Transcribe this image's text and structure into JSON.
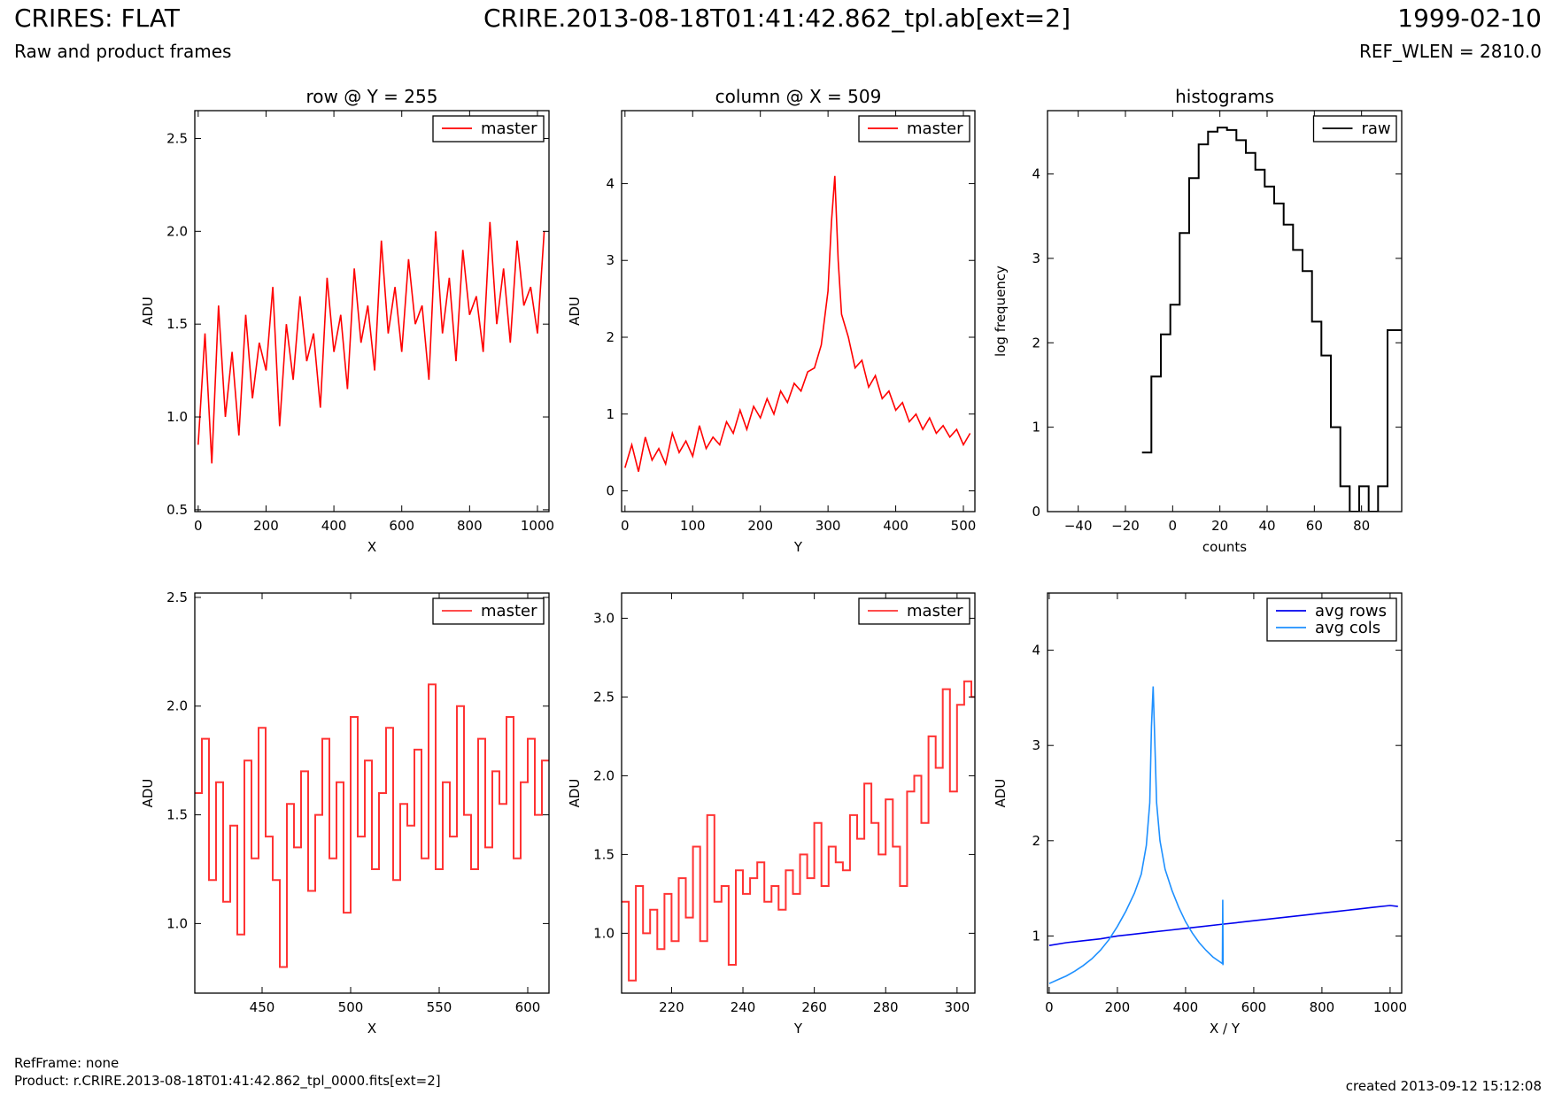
{
  "header": {
    "title_left": "CRIRES: FLAT",
    "subtitle_left": "Raw and product frames",
    "title_center": "CRIRE.2013-08-18T01:41:42.862_tpl.ab[ext=2]",
    "title_right": "1999-02-10",
    "subtitle_right": "REF_WLEN = 2810.0"
  },
  "footer": {
    "refframe": "RefFrame: none",
    "product": "Product: r.CRIRE.2013-08-18T01:41:42.862_tpl_0000.fits[ext=2]",
    "created": "created 2013-09-12 15:12:08"
  },
  "colors": {
    "master": "#ff0000",
    "master_zoom": "#ff3333",
    "raw": "#000000",
    "avg_rows": "#0000ee",
    "avg_cols": "#1e90ff"
  },
  "chart_data": [
    {
      "type": "line",
      "title": "row @ Y = 255",
      "xlabel": "X",
      "ylabel": "ADU",
      "xlim": [
        -10,
        1034
      ],
      "ylim": [
        0.49,
        2.65
      ],
      "xticks": [
        0,
        200,
        400,
        600,
        800,
        1000
      ],
      "yticks": [
        0.5,
        1.0,
        1.5,
        2.0,
        2.5
      ],
      "legend": "top-right",
      "grid": false,
      "series": [
        {
          "name": "master",
          "color": "#ff0000",
          "style": "line",
          "x": [
            0,
            20,
            40,
            60,
            80,
            100,
            120,
            140,
            160,
            180,
            200,
            220,
            240,
            260,
            280,
            300,
            320,
            340,
            360,
            380,
            400,
            420,
            440,
            460,
            480,
            500,
            520,
            540,
            560,
            580,
            600,
            620,
            640,
            660,
            680,
            700,
            720,
            740,
            760,
            780,
            800,
            820,
            840,
            860,
            880,
            900,
            920,
            940,
            960,
            980,
            1000,
            1020
          ],
          "y": [
            0.85,
            1.45,
            0.75,
            1.6,
            1.0,
            1.35,
            0.9,
            1.55,
            1.1,
            1.4,
            1.25,
            1.7,
            0.95,
            1.5,
            1.2,
            1.65,
            1.3,
            1.45,
            1.05,
            1.75,
            1.35,
            1.55,
            1.15,
            1.8,
            1.4,
            1.6,
            1.25,
            1.95,
            1.45,
            1.7,
            1.35,
            1.85,
            1.5,
            1.6,
            1.2,
            2.0,
            1.45,
            1.75,
            1.3,
            1.9,
            1.55,
            1.65,
            1.35,
            2.05,
            1.5,
            1.8,
            1.4,
            1.95,
            1.6,
            1.7,
            1.45,
            2.0
          ]
        }
      ]
    },
    {
      "type": "line",
      "title": "column @ X = 509",
      "xlabel": "Y",
      "ylabel": "ADU",
      "xlim": [
        -5,
        517
      ],
      "ylim": [
        -0.27,
        4.95
      ],
      "xticks": [
        0,
        100,
        200,
        300,
        400,
        500
      ],
      "yticks": [
        0,
        1,
        2,
        3,
        4
      ],
      "legend": "top-right",
      "grid": false,
      "series": [
        {
          "name": "master",
          "color": "#ff0000",
          "style": "line",
          "x": [
            0,
            10,
            20,
            30,
            40,
            50,
            60,
            70,
            80,
            90,
            100,
            110,
            120,
            130,
            140,
            150,
            160,
            170,
            180,
            190,
            200,
            210,
            220,
            230,
            240,
            250,
            260,
            270,
            280,
            290,
            300,
            305,
            310,
            315,
            320,
            330,
            340,
            350,
            360,
            370,
            380,
            390,
            400,
            410,
            420,
            430,
            440,
            450,
            460,
            470,
            480,
            490,
            500,
            510
          ],
          "y": [
            0.3,
            0.6,
            0.25,
            0.7,
            0.4,
            0.55,
            0.35,
            0.75,
            0.5,
            0.65,
            0.45,
            0.85,
            0.55,
            0.7,
            0.6,
            0.9,
            0.75,
            1.05,
            0.8,
            1.1,
            0.95,
            1.2,
            1.0,
            1.3,
            1.15,
            1.4,
            1.3,
            1.55,
            1.6,
            1.9,
            2.6,
            3.5,
            4.1,
            3.0,
            2.3,
            2.0,
            1.6,
            1.7,
            1.35,
            1.5,
            1.2,
            1.3,
            1.05,
            1.15,
            0.9,
            1.0,
            0.8,
            0.95,
            0.75,
            0.85,
            0.7,
            0.8,
            0.6,
            0.75
          ]
        }
      ]
    },
    {
      "type": "line",
      "title": "histograms",
      "xlabel": "counts",
      "ylabel": "log frequency",
      "xlim": [
        -53,
        97
      ],
      "ylim": [
        0,
        4.75
      ],
      "xticks": [
        -40,
        -20,
        0,
        20,
        40,
        60,
        80
      ],
      "yticks": [
        0,
        1,
        2,
        3,
        4
      ],
      "legend": "top-right",
      "grid": false,
      "series": [
        {
          "name": "raw",
          "color": "#000000",
          "style": "step",
          "x": [
            -13,
            -9,
            -5,
            -1,
            3,
            7,
            11,
            15,
            19,
            23,
            27,
            31,
            35,
            39,
            43,
            47,
            51,
            55,
            59,
            63,
            67,
            71,
            75,
            79,
            83,
            87,
            91,
            95
          ],
          "y": [
            0.7,
            1.6,
            2.1,
            2.45,
            3.3,
            3.95,
            4.35,
            4.5,
            4.55,
            4.52,
            4.4,
            4.25,
            4.05,
            3.85,
            3.65,
            3.4,
            3.1,
            2.85,
            2.25,
            1.85,
            1.0,
            0.3,
            0.0,
            0.3,
            0.0,
            0.3,
            2.15,
            2.15
          ]
        }
      ]
    },
    {
      "type": "line",
      "title": "",
      "xlabel": "X",
      "ylabel": "ADU",
      "xlim": [
        412,
        612
      ],
      "ylim": [
        0.68,
        2.52
      ],
      "xticks": [
        450,
        500,
        550,
        600
      ],
      "yticks": [
        1.0,
        1.5,
        2.0,
        2.5
      ],
      "legend": "top-right",
      "grid": false,
      "series": [
        {
          "name": "master",
          "color": "#ff3333",
          "style": "step",
          "x": [
            412,
            416,
            420,
            424,
            428,
            432,
            436,
            440,
            444,
            448,
            452,
            456,
            460,
            464,
            468,
            472,
            476,
            480,
            484,
            488,
            492,
            496,
            500,
            504,
            508,
            512,
            516,
            520,
            524,
            528,
            532,
            536,
            540,
            544,
            548,
            552,
            556,
            560,
            564,
            568,
            572,
            576,
            580,
            584,
            588,
            592,
            596,
            600,
            604,
            608
          ],
          "y": [
            1.6,
            1.85,
            1.2,
            1.65,
            1.1,
            1.45,
            0.95,
            1.75,
            1.3,
            1.9,
            1.4,
            1.2,
            0.8,
            1.55,
            1.35,
            1.7,
            1.15,
            1.5,
            1.85,
            1.3,
            1.65,
            1.05,
            1.95,
            1.4,
            1.75,
            1.25,
            1.6,
            1.9,
            1.2,
            1.55,
            1.45,
            1.8,
            1.3,
            2.1,
            1.25,
            1.65,
            1.4,
            2.0,
            1.5,
            1.25,
            1.85,
            1.35,
            1.7,
            1.55,
            1.95,
            1.3,
            1.65,
            1.85,
            1.5,
            1.75
          ]
        }
      ]
    },
    {
      "type": "line",
      "title": "",
      "xlabel": "Y",
      "ylabel": "ADU",
      "xlim": [
        206,
        305
      ],
      "ylim": [
        0.62,
        3.16
      ],
      "xticks": [
        220,
        240,
        260,
        280,
        300
      ],
      "yticks": [
        1.0,
        1.5,
        2.0,
        2.5,
        3.0
      ],
      "legend": "top-right",
      "grid": false,
      "series": [
        {
          "name": "master",
          "color": "#ff3333",
          "style": "step",
          "x": [
            206,
            208,
            210,
            212,
            214,
            216,
            218,
            220,
            222,
            224,
            226,
            228,
            230,
            232,
            234,
            236,
            238,
            240,
            242,
            244,
            246,
            248,
            250,
            252,
            254,
            256,
            258,
            260,
            262,
            264,
            266,
            268,
            270,
            272,
            274,
            276,
            278,
            280,
            282,
            284,
            286,
            288,
            290,
            292,
            294,
            296,
            298,
            300,
            302,
            304
          ],
          "y": [
            1.2,
            0.7,
            1.3,
            1.0,
            1.15,
            0.9,
            1.25,
            0.95,
            1.35,
            1.1,
            1.55,
            0.95,
            1.75,
            1.2,
            1.3,
            0.8,
            1.4,
            1.25,
            1.35,
            1.45,
            1.2,
            1.3,
            1.15,
            1.4,
            1.25,
            1.5,
            1.35,
            1.7,
            1.3,
            1.55,
            1.45,
            1.4,
            1.75,
            1.6,
            1.95,
            1.7,
            1.5,
            1.85,
            1.55,
            1.3,
            1.9,
            2.0,
            1.7,
            2.25,
            2.05,
            2.55,
            1.9,
            2.45,
            2.6,
            2.5
          ]
        }
      ]
    },
    {
      "type": "line",
      "title": "",
      "xlabel": "X / Y",
      "ylabel": "ADU",
      "xlim": [
        -5,
        1034
      ],
      "ylim": [
        0.4,
        4.6
      ],
      "xticks": [
        0,
        200,
        400,
        600,
        800,
        1000
      ],
      "yticks": [
        1,
        2,
        3,
        4
      ],
      "legend": "top-right",
      "grid": false,
      "series": [
        {
          "name": "avg rows",
          "color": "#0000ee",
          "style": "line",
          "x": [
            0,
            50,
            100,
            150,
            200,
            250,
            300,
            350,
            400,
            450,
            500,
            550,
            600,
            650,
            700,
            750,
            800,
            850,
            900,
            950,
            1000,
            1023
          ],
          "y": [
            0.9,
            0.93,
            0.95,
            0.97,
            1.0,
            1.02,
            1.04,
            1.06,
            1.08,
            1.1,
            1.12,
            1.14,
            1.16,
            1.18,
            1.2,
            1.22,
            1.24,
            1.26,
            1.28,
            1.3,
            1.32,
            1.31
          ]
        },
        {
          "name": "avg cols",
          "color": "#1e90ff",
          "style": "line",
          "x": [
            0,
            25,
            50,
            75,
            100,
            125,
            150,
            175,
            200,
            225,
            250,
            270,
            285,
            295,
            300,
            305,
            310,
            315,
            325,
            340,
            360,
            380,
            400,
            420,
            440,
            460,
            480,
            500,
            508,
            509,
            510,
            511
          ],
          "y": [
            0.5,
            0.54,
            0.58,
            0.63,
            0.69,
            0.76,
            0.85,
            0.96,
            1.1,
            1.26,
            1.45,
            1.65,
            1.95,
            2.4,
            3.2,
            3.62,
            3.0,
            2.4,
            2.0,
            1.7,
            1.48,
            1.3,
            1.15,
            1.03,
            0.93,
            0.85,
            0.78,
            0.73,
            0.71,
            1.38,
            0.7,
            0.7
          ]
        }
      ]
    }
  ]
}
